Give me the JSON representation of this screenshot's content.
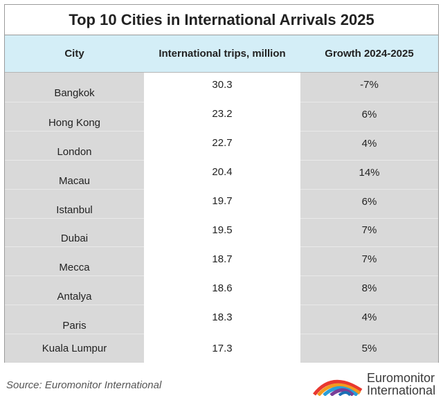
{
  "title": "Top 10 Cities in International Arrivals 2025",
  "source": "Source: Euromonitor International",
  "logo": {
    "line1": "Euromonitor",
    "line2": "International",
    "icon": "rainbow-arches-icon"
  },
  "chart_data": {
    "type": "table",
    "title": "Top 10 Cities in International Arrivals 2025",
    "columns": [
      "City",
      "International trips, million",
      "Growth 2024-2025"
    ],
    "rows": [
      [
        "Bangkok",
        "30.3",
        "-7%"
      ],
      [
        "Hong Kong",
        "23.2",
        "6%"
      ],
      [
        "London",
        "22.7",
        "4%"
      ],
      [
        "Macau",
        "20.4",
        "14%"
      ],
      [
        "Istanbul",
        "19.7",
        "6%"
      ],
      [
        "Dubai",
        "19.5",
        "7%"
      ],
      [
        "Mecca",
        "18.7",
        "7%"
      ],
      [
        "Antalya",
        "18.6",
        "8%"
      ],
      [
        "Paris",
        "18.3",
        "4%"
      ],
      [
        "Kuala Lumpur",
        "17.3",
        "5%"
      ]
    ]
  },
  "colors": {
    "header_bg": "#d4eef7",
    "shaded_cell": "#d9d9d9",
    "border": "#9a9a9a"
  }
}
